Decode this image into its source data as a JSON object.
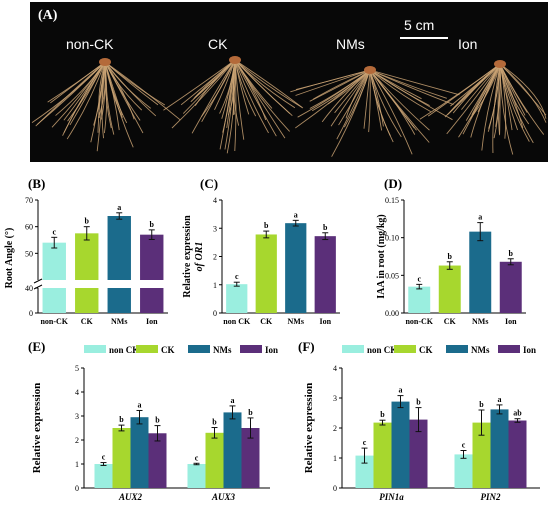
{
  "figure": {
    "panel_A_label": "(A)",
    "photo_labels": [
      "non-CK",
      "CK",
      "NMs",
      "Ion"
    ],
    "scale_bar_label": "5 cm",
    "colors": {
      "nonCK": "#9aeedf",
      "CK": "#a7d72e",
      "NMs": "#1b6b8c",
      "Ion": "#5b2f79",
      "photo_bg": "#080808",
      "root": "#c9a273"
    }
  },
  "chart_data": [
    {
      "panel": "(B)",
      "type": "bar",
      "ylabel": "Root Angle (°)",
      "axis_break": true,
      "ylim_lower": [
        0,
        40
      ],
      "ylim_upper": [
        40,
        70
      ],
      "yticks": [
        0,
        40,
        50,
        60,
        70
      ],
      "categories": [
        "non-CK",
        "CK",
        "NMs",
        "Ion"
      ],
      "values": [
        54,
        57.5,
        64,
        57
      ],
      "errors": [
        2,
        2.5,
        1.2,
        1.8
      ],
      "letters": [
        "c",
        "b",
        "a",
        "b"
      ],
      "colors": [
        "#9aeedf",
        "#a7d72e",
        "#1b6b8c",
        "#5b2f79"
      ]
    },
    {
      "panel": "(C)",
      "type": "bar",
      "ylabel": "Relative expression",
      "ylabel2": "of OR1",
      "ylim": [
        0,
        4
      ],
      "yticks": [
        0,
        1,
        2,
        3,
        4
      ],
      "categories": [
        "non CK",
        "CK",
        "NMs",
        "Ion"
      ],
      "values": [
        1.02,
        2.78,
        3.18,
        2.72
      ],
      "errors": [
        0.07,
        0.12,
        0.1,
        0.12
      ],
      "letters": [
        "c",
        "b",
        "a",
        "b"
      ],
      "colors": [
        "#9aeedf",
        "#a7d72e",
        "#1b6b8c",
        "#5b2f79"
      ]
    },
    {
      "panel": "(D)",
      "type": "bar",
      "ylabel": "IAA in root (mg/kg)",
      "ylim": [
        0,
        0.15
      ],
      "yticks": [
        "0.00",
        "0.05",
        "0.10",
        "0.15"
      ],
      "categories": [
        "non-CK",
        "CK",
        "NMs",
        "Ion"
      ],
      "values": [
        0.035,
        0.063,
        0.108,
        0.068
      ],
      "errors": [
        0.003,
        0.005,
        0.012,
        0.004
      ],
      "letters": [
        "c",
        "b",
        "a",
        "b"
      ],
      "colors": [
        "#9aeedf",
        "#a7d72e",
        "#1b6b8c",
        "#5b2f79"
      ]
    },
    {
      "panel": "(E)",
      "type": "bar",
      "ylabel": "Relative expression",
      "ylim": [
        0,
        5
      ],
      "yticks": [
        0,
        1,
        2,
        3,
        4,
        5
      ],
      "categories": [
        "AUX2",
        "AUX3"
      ],
      "series": [
        {
          "name": "non CK",
          "values": [
            1.0,
            1.0
          ],
          "errors": [
            0.06,
            0.03
          ],
          "letters": [
            "c",
            "c"
          ],
          "color": "#9aeedf"
        },
        {
          "name": "CK",
          "values": [
            2.5,
            2.3
          ],
          "errors": [
            0.12,
            0.22
          ],
          "letters": [
            "b",
            "b"
          ],
          "color": "#a7d72e"
        },
        {
          "name": "NMs",
          "values": [
            2.95,
            3.15
          ],
          "errors": [
            0.28,
            0.27
          ],
          "letters": [
            "a",
            "a"
          ],
          "color": "#1b6b8c"
        },
        {
          "name": "Ion",
          "values": [
            2.28,
            2.5
          ],
          "errors": [
            0.32,
            0.42
          ],
          "letters": [
            "b",
            "b"
          ],
          "color": "#5b2f79"
        }
      ]
    },
    {
      "panel": "(F)",
      "type": "bar",
      "ylabel": "Relative expression",
      "ylim": [
        0,
        4
      ],
      "yticks": [
        0,
        1,
        2,
        3,
        4
      ],
      "categories": [
        "PIN1a",
        "PIN2"
      ],
      "series": [
        {
          "name": "non CK",
          "values": [
            1.08,
            1.12
          ],
          "errors": [
            0.25,
            0.13
          ],
          "letters": [
            "c",
            "c"
          ],
          "color": "#9aeedf"
        },
        {
          "name": "CK",
          "values": [
            2.18,
            2.18
          ],
          "errors": [
            0.08,
            0.42
          ],
          "letters": [
            "b",
            "b"
          ],
          "color": "#a7d72e"
        },
        {
          "name": "NMs",
          "values": [
            2.88,
            2.62
          ],
          "errors": [
            0.2,
            0.15
          ],
          "letters": [
            "a",
            "a"
          ],
          "color": "#1b6b8c"
        },
        {
          "name": "Ion",
          "values": [
            2.28,
            2.25
          ],
          "errors": [
            0.4,
            0.06
          ],
          "letters": [
            "b",
            "ab"
          ],
          "color": "#5b2f79"
        }
      ]
    }
  ]
}
